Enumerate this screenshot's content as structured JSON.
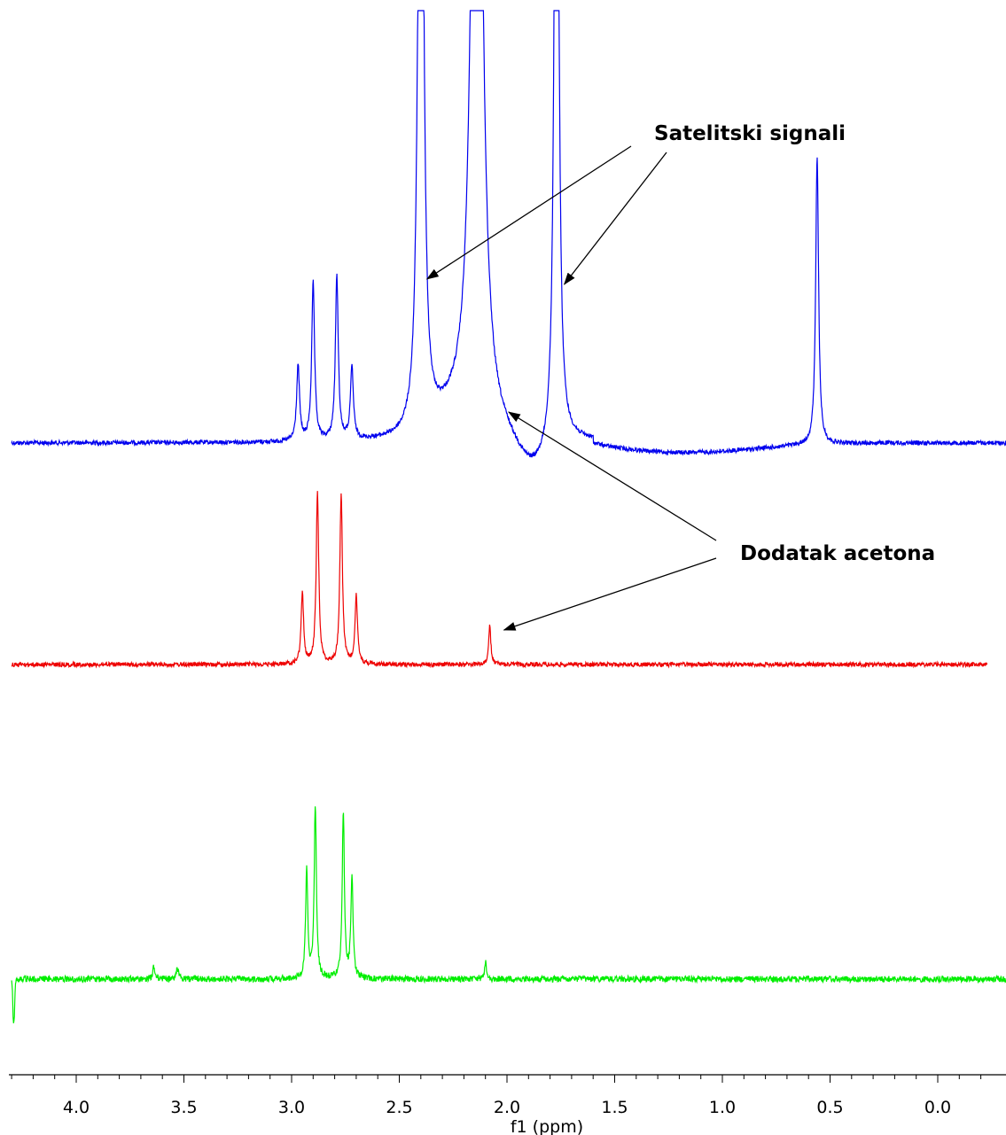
{
  "chart_data": {
    "type": "line",
    "title": "",
    "xlabel": "f1 (ppm)",
    "ylabel": "",
    "xlim": [
      4.3,
      -0.25
    ],
    "x_reversed": true,
    "grid": false,
    "ticks": [
      "4.0",
      "3.5",
      "3.0",
      "2.5",
      "2.0",
      "1.5",
      "1.0",
      "0.5",
      "0.0"
    ],
    "series": [
      {
        "color": "#0000ee",
        "x_range": [
          4.3,
          -0.33
        ],
        "baseline_noise": 2.5,
        "peaks": [
          {
            "x": 2.97,
            "height": 85,
            "width": 0.008
          },
          {
            "x": 2.9,
            "height": 178,
            "width": 0.008
          },
          {
            "x": 2.79,
            "height": 185,
            "width": 0.008
          },
          {
            "x": 2.72,
            "height": 82,
            "width": 0.008
          },
          {
            "x": 2.4,
            "height": 1200,
            "width": 0.012
          },
          {
            "x": 2.14,
            "height": 1200,
            "width": 0.025
          },
          {
            "x": 1.77,
            "height": 1200,
            "width": 0.01
          },
          {
            "x": 0.56,
            "height": 325,
            "width": 0.008
          }
        ],
        "dips": [
          {
            "x": 1.88,
            "depth": 35,
            "width": 0.1
          }
        ]
      },
      {
        "color": "#ee0000",
        "x_range": [
          4.3,
          -0.23
        ],
        "baseline_noise": 2.5,
        "peaks": [
          {
            "x": 2.95,
            "height": 80,
            "width": 0.007
          },
          {
            "x": 2.88,
            "height": 195,
            "width": 0.007
          },
          {
            "x": 2.77,
            "height": 193,
            "width": 0.007
          },
          {
            "x": 2.7,
            "height": 77,
            "width": 0.007
          },
          {
            "x": 2.08,
            "height": 43,
            "width": 0.006
          }
        ],
        "dips": []
      },
      {
        "color": "#00ee00",
        "x_range": [
          4.3,
          -0.33
        ],
        "baseline_noise": 3.5,
        "peaks": [
          {
            "x": 2.93,
            "height": 122,
            "width": 0.006
          },
          {
            "x": 2.89,
            "height": 196,
            "width": 0.006
          },
          {
            "x": 2.76,
            "height": 188,
            "width": 0.006
          },
          {
            "x": 2.72,
            "height": 115,
            "width": 0.006
          },
          {
            "x": 3.64,
            "height": 14,
            "width": 0.006
          },
          {
            "x": 3.53,
            "height": 12,
            "width": 0.006
          },
          {
            "x": 2.1,
            "height": 20,
            "width": 0.005
          }
        ],
        "dips": [
          {
            "x": 4.29,
            "depth": 50,
            "width": 0.006
          }
        ]
      }
    ],
    "annotations": [
      {
        "text": "Satelitski signali",
        "points_to": [
          2.38,
          1.73
        ]
      },
      {
        "text": "Dodatak acetona",
        "points_to": [
          2.08,
          1.98
        ]
      }
    ]
  }
}
